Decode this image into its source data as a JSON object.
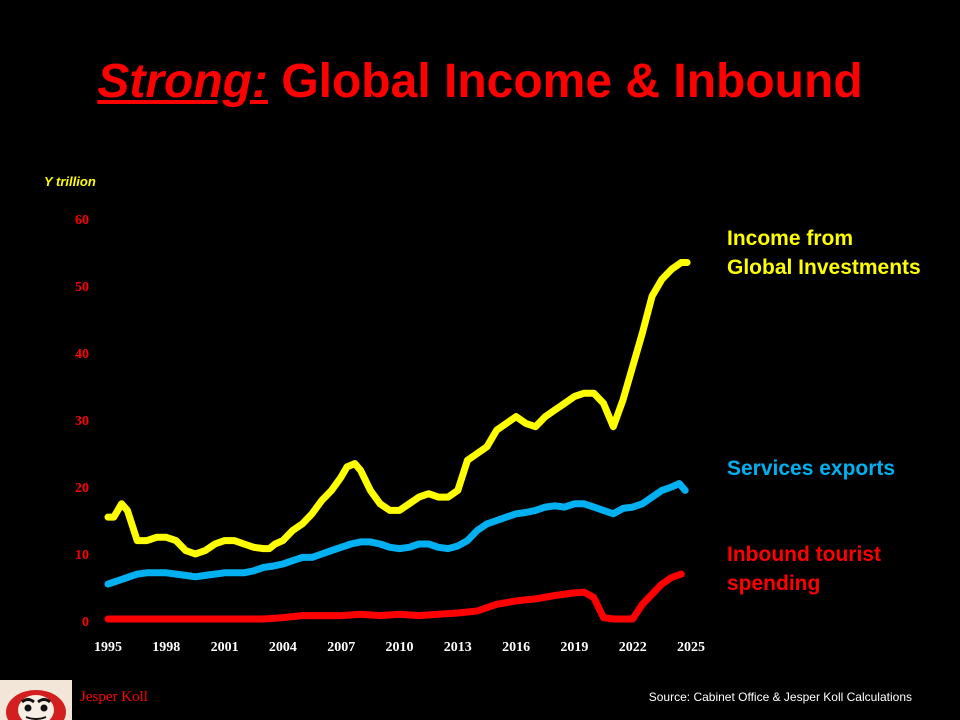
{
  "header": {
    "title_emphasis": "Strong:",
    "title_rest": "Global Income & Inbound"
  },
  "colors": {
    "background": "#000000",
    "title": "#FF0000",
    "income": "#FFFF00",
    "services": "#00B0F0",
    "tourist": "#FF0000",
    "tick_labels": "#FF0000"
  },
  "legend_labels": {
    "income": [
      "Income from",
      "Global Investments"
    ],
    "services": [
      "Services exports"
    ],
    "tourist": [
      "Inbound tourist",
      "spending"
    ]
  },
  "footer": {
    "author": "Jesper Koll",
    "source": "Source: Cabinet Office & Jesper Koll Calculations",
    "logo_icon": "daruma-logo-icon"
  },
  "chart_data": {
    "type": "line",
    "ylabel": "Y trillion",
    "ylim": [
      0,
      60
    ],
    "yticks": [
      0,
      10,
      20,
      30,
      40,
      50,
      60
    ],
    "xlim": [
      1995,
      2025
    ],
    "xticks": [
      1995,
      1998,
      2001,
      2004,
      2007,
      2010,
      2013,
      2016,
      2019,
      2022,
      2025
    ],
    "grid": false,
    "legend": "right, inline labels",
    "series": [
      {
        "key": "income",
        "name": "Income from Global Investments",
        "color": "#FFFF00",
        "points": [
          [
            1995.0,
            15.5
          ],
          [
            1995.3,
            15.5
          ],
          [
            1995.7,
            17.5
          ],
          [
            1996.0,
            16.5
          ],
          [
            1996.5,
            12.0
          ],
          [
            1997.0,
            12.0
          ],
          [
            1997.5,
            12.5
          ],
          [
            1998.0,
            12.5
          ],
          [
            1998.5,
            12.0
          ],
          [
            1999.0,
            10.5
          ],
          [
            1999.5,
            10.0
          ],
          [
            2000.0,
            10.5
          ],
          [
            2000.5,
            11.5
          ],
          [
            2001.0,
            12.0
          ],
          [
            2001.5,
            12.0
          ],
          [
            2002.0,
            11.5
          ],
          [
            2002.5,
            11.0
          ],
          [
            2003.0,
            10.8
          ],
          [
            2003.3,
            10.8
          ],
          [
            2003.6,
            11.5
          ],
          [
            2004.0,
            12.0
          ],
          [
            2004.5,
            13.5
          ],
          [
            2005.0,
            14.5
          ],
          [
            2005.5,
            16.0
          ],
          [
            2006.0,
            18.0
          ],
          [
            2006.5,
            19.5
          ],
          [
            2007.0,
            21.5
          ],
          [
            2007.3,
            23.0
          ],
          [
            2007.7,
            23.5
          ],
          [
            2008.0,
            22.5
          ],
          [
            2008.5,
            19.5
          ],
          [
            2009.0,
            17.5
          ],
          [
            2009.5,
            16.5
          ],
          [
            2010.0,
            16.5
          ],
          [
            2010.5,
            17.5
          ],
          [
            2011.0,
            18.5
          ],
          [
            2011.5,
            19.0
          ],
          [
            2012.0,
            18.5
          ],
          [
            2012.5,
            18.5
          ],
          [
            2013.0,
            19.5
          ],
          [
            2013.5,
            24.0
          ],
          [
            2014.0,
            25.0
          ],
          [
            2014.5,
            26.0
          ],
          [
            2015.0,
            28.5
          ],
          [
            2015.5,
            29.5
          ],
          [
            2016.0,
            30.5
          ],
          [
            2016.5,
            29.5
          ],
          [
            2017.0,
            29.0
          ],
          [
            2017.5,
            30.5
          ],
          [
            2018.0,
            31.5
          ],
          [
            2018.5,
            32.5
          ],
          [
            2019.0,
            33.5
          ],
          [
            2019.5,
            34.0
          ],
          [
            2020.0,
            34.0
          ],
          [
            2020.5,
            32.5
          ],
          [
            2021.0,
            29.0
          ],
          [
            2021.5,
            33.0
          ],
          [
            2022.0,
            38.0
          ],
          [
            2022.5,
            43.0
          ],
          [
            2023.0,
            48.5
          ],
          [
            2023.5,
            51.0
          ],
          [
            2024.0,
            52.5
          ],
          [
            2024.5,
            53.5
          ],
          [
            2024.8,
            53.5
          ]
        ]
      },
      {
        "key": "services",
        "name": "Services exports",
        "color": "#00B0F0",
        "points": [
          [
            1995.0,
            5.5
          ],
          [
            1995.5,
            6.0
          ],
          [
            1996.0,
            6.5
          ],
          [
            1996.5,
            7.0
          ],
          [
            1997.0,
            7.2
          ],
          [
            1997.5,
            7.2
          ],
          [
            1998.0,
            7.2
          ],
          [
            1998.5,
            7.0
          ],
          [
            1999.0,
            6.8
          ],
          [
            1999.5,
            6.6
          ],
          [
            2000.0,
            6.8
          ],
          [
            2000.5,
            7.0
          ],
          [
            2001.0,
            7.2
          ],
          [
            2001.5,
            7.2
          ],
          [
            2002.0,
            7.2
          ],
          [
            2002.5,
            7.5
          ],
          [
            2003.0,
            8.0
          ],
          [
            2003.5,
            8.2
          ],
          [
            2004.0,
            8.5
          ],
          [
            2004.5,
            9.0
          ],
          [
            2005.0,
            9.5
          ],
          [
            2005.5,
            9.5
          ],
          [
            2006.0,
            10.0
          ],
          [
            2006.5,
            10.5
          ],
          [
            2007.0,
            11.0
          ],
          [
            2007.5,
            11.5
          ],
          [
            2008.0,
            11.8
          ],
          [
            2008.5,
            11.8
          ],
          [
            2009.0,
            11.5
          ],
          [
            2009.5,
            11.0
          ],
          [
            2010.0,
            10.8
          ],
          [
            2010.5,
            11.0
          ],
          [
            2011.0,
            11.5
          ],
          [
            2011.5,
            11.5
          ],
          [
            2012.0,
            11.0
          ],
          [
            2012.5,
            10.8
          ],
          [
            2013.0,
            11.2
          ],
          [
            2013.5,
            12.0
          ],
          [
            2014.0,
            13.5
          ],
          [
            2014.5,
            14.5
          ],
          [
            2015.0,
            15.0
          ],
          [
            2015.5,
            15.5
          ],
          [
            2016.0,
            16.0
          ],
          [
            2016.5,
            16.2
          ],
          [
            2017.0,
            16.5
          ],
          [
            2017.5,
            17.0
          ],
          [
            2018.0,
            17.2
          ],
          [
            2018.5,
            17.0
          ],
          [
            2019.0,
            17.5
          ],
          [
            2019.5,
            17.5
          ],
          [
            2020.0,
            17.0
          ],
          [
            2020.5,
            16.5
          ],
          [
            2021.0,
            16.0
          ],
          [
            2021.5,
            16.8
          ],
          [
            2022.0,
            17.0
          ],
          [
            2022.5,
            17.5
          ],
          [
            2023.0,
            18.5
          ],
          [
            2023.5,
            19.5
          ],
          [
            2024.0,
            20.0
          ],
          [
            2024.4,
            20.5
          ],
          [
            2024.7,
            19.5
          ]
        ]
      },
      {
        "key": "tourist",
        "name": "Inbound tourist spending",
        "color": "#FF0000",
        "points": [
          [
            1995.0,
            0.3
          ],
          [
            1997.0,
            0.3
          ],
          [
            1999.0,
            0.3
          ],
          [
            2001.0,
            0.3
          ],
          [
            2003.0,
            0.3
          ],
          [
            2004.0,
            0.5
          ],
          [
            2005.0,
            0.8
          ],
          [
            2006.0,
            0.8
          ],
          [
            2007.0,
            0.8
          ],
          [
            2008.0,
            1.0
          ],
          [
            2009.0,
            0.8
          ],
          [
            2010.0,
            1.0
          ],
          [
            2011.0,
            0.8
          ],
          [
            2012.0,
            1.0
          ],
          [
            2013.0,
            1.2
          ],
          [
            2014.0,
            1.5
          ],
          [
            2015.0,
            2.5
          ],
          [
            2016.0,
            3.0
          ],
          [
            2017.0,
            3.3
          ],
          [
            2018.0,
            3.8
          ],
          [
            2019.0,
            4.2
          ],
          [
            2019.5,
            4.3
          ],
          [
            2020.0,
            3.5
          ],
          [
            2020.5,
            0.5
          ],
          [
            2021.0,
            0.3
          ],
          [
            2022.0,
            0.3
          ],
          [
            2022.5,
            2.5
          ],
          [
            2023.0,
            4.0
          ],
          [
            2023.5,
            5.5
          ],
          [
            2024.0,
            6.5
          ],
          [
            2024.5,
            7.0
          ]
        ]
      }
    ]
  }
}
